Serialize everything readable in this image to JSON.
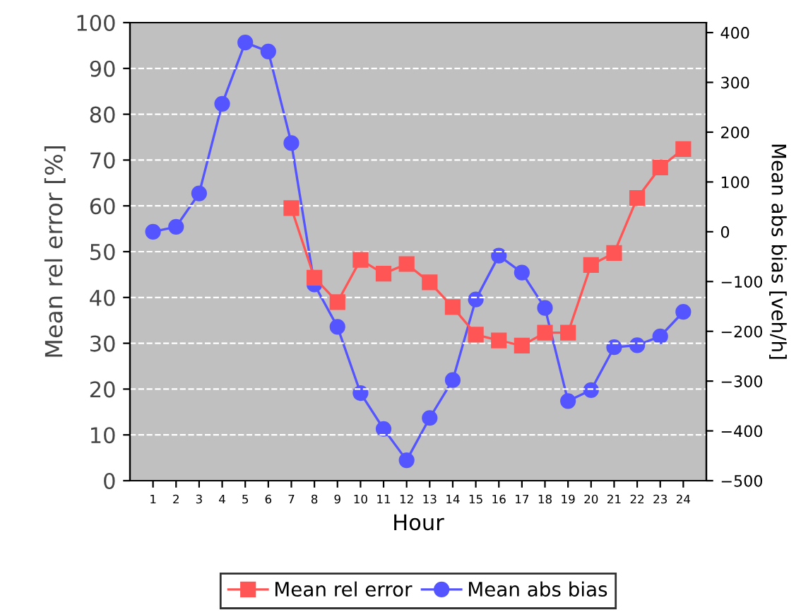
{
  "chart_data": {
    "type": "line",
    "xlabel": "Hour",
    "ylabel": "Mean rel error [%]",
    "y2label": "Mean abs bias [veh/h]",
    "categories": [
      "1",
      "2",
      "3",
      "4",
      "5",
      "6",
      "7",
      "8",
      "9",
      "10",
      "11",
      "12",
      "13",
      "14",
      "15",
      "16",
      "17",
      "18",
      "19",
      "20",
      "21",
      "22",
      "23",
      "24"
    ],
    "series": [
      {
        "name": "Mean rel error",
        "color": "#ff5555",
        "marker": "square",
        "values": [
          null,
          null,
          null,
          null,
          null,
          null,
          59.5,
          44.3,
          39,
          48.2,
          45.2,
          47.3,
          43.3,
          37.9,
          31.9,
          30.6,
          29.5,
          32.3,
          32.3,
          47.1,
          49.7,
          61.7,
          68.4,
          72.4
        ]
      },
      {
        "name": "Mean abs bias",
        "color": "#5555ff",
        "marker": "circle",
        "axis": "y2",
        "values": [
          0,
          10,
          77,
          257,
          380,
          362,
          178,
          -106,
          -191,
          -324,
          -396,
          -459,
          -374,
          -298,
          -136,
          -48,
          -82,
          -153,
          -340,
          -318,
          -232,
          -228,
          -210,
          -161
        ]
      }
    ],
    "ylim": [
      0,
      100
    ],
    "yticks": [
      0,
      10,
      20,
      30,
      40,
      50,
      60,
      70,
      80,
      90,
      100
    ],
    "y2lim": [
      -500,
      420
    ],
    "y2ticks": [
      -500,
      -400,
      -300,
      -200,
      -100,
      0,
      100,
      200,
      300,
      400
    ],
    "grid": "y",
    "legend": "bottom",
    "line_style": "solid"
  }
}
